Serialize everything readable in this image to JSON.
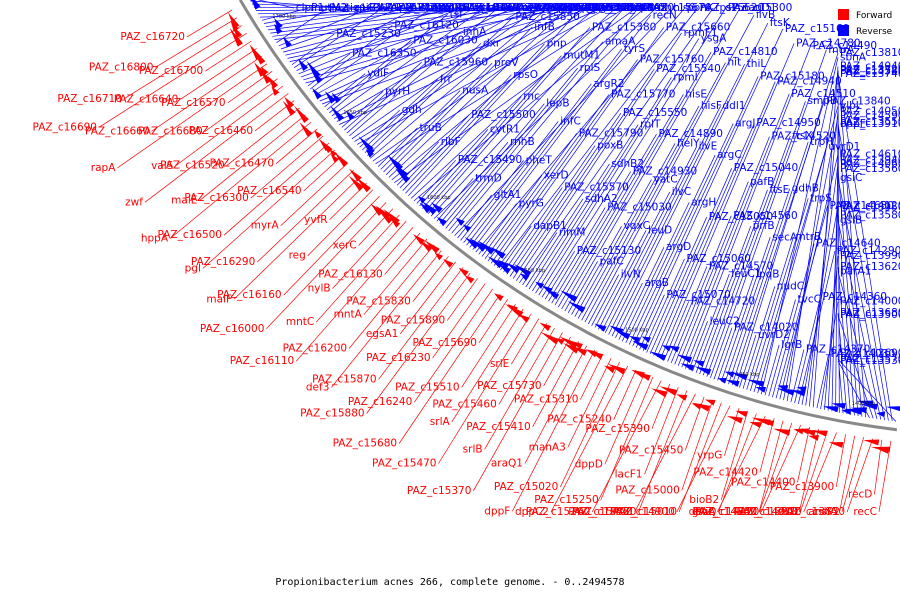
{
  "caption": "Propionibacterium acnes 266, complete genome. - 0..2494578",
  "legend": [
    {
      "label": "Forward",
      "color": "#ff0000"
    },
    {
      "label": "Reverse",
      "color": "#0000ff"
    }
  ],
  "colors": {
    "forward": "#ff0000",
    "reverse": "#0000ff",
    "backbone": "#888888"
  },
  "scale_ticks": [
    "1700 kbp",
    "1650 kbp",
    "1600 kbp",
    "1550 kbp",
    "1500 kbp",
    "1450 kbp",
    "1400 kbp"
  ],
  "forward_labels": [
    "PAZ_c16720",
    "PAZ_c16800",
    "PAZ_c16710",
    "PAZ_c16690",
    "PAZ_c16700",
    "PAZ_c16640",
    "PAZ_c16660",
    "rapA",
    "PAZ_c16570",
    "PAZ_c16680",
    "valS",
    "zwf",
    "PAZ_c16460",
    "PAZ_c16520",
    "malE",
    "hppA",
    "PAZ_c16470",
    "PAZ_c16300",
    "PAZ_c16500",
    "pgl",
    "PAZ_c16540",
    "myrA",
    "PAZ_c16290",
    "malF",
    "yvfR",
    "reg",
    "PAZ_c16160",
    "PAZ_c16000",
    "xerC",
    "nylB",
    "mntC",
    "PAZ_c16110",
    "PAZ_c16130",
    "mntA",
    "PAZ_c16200",
    "def3",
    "PAZ_c15830",
    "egsA1",
    "PAZ_c15870",
    "PAZ_c15880",
    "PAZ_c15890",
    "PAZ_c16230",
    "PAZ_c16240",
    "PAZ_c15680",
    "PAZ_c15690",
    "PAZ_c15510",
    "srlA",
    "PAZ_c15470",
    "srlE",
    "PAZ_c15460",
    "srlB",
    "PAZ_c15370",
    "PAZ_c15730",
    "PAZ_c15410",
    "araQ1",
    "dppF",
    "PAZ_c15310",
    "manA3",
    "PAZ_c15020",
    "dppC2",
    "PAZ_c15240",
    "dppD",
    "PAZ_c15250",
    "PAZ_c15260",
    "PAZ_c15390",
    "lacF1",
    "PAZ_c15350",
    "PAZ_c15400",
    "PAZ_c15450",
    "PAZ_c15000",
    "PAZ_c15010",
    "PAZ_c14900",
    "yrpG",
    "bioB2",
    "gluQ",
    "deoA",
    "PAZ_c14420",
    "PAZ_c14330",
    "PAZ_c14240",
    "PAZ_c14270",
    "PAZ_c14400",
    "leuB",
    "PAZ_c14010",
    "PAZ_c13920",
    "PAZ_c13900",
    "cshA",
    "ansP2",
    "PAZ_c13830",
    "recD",
    "recC"
  ],
  "reverse_labels": [
    "clpP1",
    "tig",
    "clpX",
    "tqsA",
    "tri",
    "PAZ_c16780",
    "lysX",
    "mutM2",
    "rpiB1",
    "PAZ_c16730",
    "clpP2",
    "ctaB",
    "nedA",
    "PAZ_c16380",
    "PAZ_c16360",
    "PAZ_c16370",
    "PAZ_c16170",
    "PAZ_c16150",
    "PAZ_c16180",
    "PAZ_c15220",
    "PAZ_c15200",
    "PAZ_c15230",
    "PAZ_c14740",
    "PAZ_c14650",
    "PAZ_c14690",
    "PAZ_c14700",
    "PAZ_c14710",
    "PAZ_c14130",
    "PAZ_c16350",
    "PAZ_c16120",
    "PAZ_c16310",
    "rpsB",
    "vuyY",
    "PAZ_c16280",
    "PAZ_c16040",
    "ydiF",
    "PAZ_c16030",
    "tsf",
    "fabG",
    "PAZ_c15970",
    "csd2",
    "nifU",
    "pyrH",
    "PAZ_c15960",
    "inhA",
    "cdsA",
    "ylmA",
    "rlmN",
    "PAZ_c15920",
    "gdh",
    "frr",
    "dxr",
    "PAZ_c15850",
    "ispG",
    "PAZ_c15840",
    "rimP",
    "truB",
    "nusA",
    "proV",
    "infB",
    "proW",
    "noDl1",
    "rbfA",
    "ribF",
    "PAZ_c15500",
    "rpsO",
    "pnp",
    "recG",
    "coaD",
    "PAZ_c15670",
    "PAZ_c15490",
    "cytR1",
    "rnc",
    "mutM1",
    "PAZ_c15380",
    "ftsY",
    "ffh",
    "trmD",
    "rnhB",
    "lepB",
    "rplS",
    "amaA",
    "pheS",
    "hisG",
    "gltA1",
    "pheT",
    "infC",
    "argR2",
    "tyrS",
    "recN",
    "ppnK",
    "pyrG",
    "xerD",
    "PAZ_c15790",
    "PAZ_c15770",
    "PAZ_c15760",
    "PAZ_c15660",
    "PAZ_c15620",
    "dapB1",
    "PAZ_c15570",
    "poxB",
    "PAZ_c15550",
    "PAZ_c15540",
    "rpmF1",
    "rpsP",
    "rimM",
    "sdhA2",
    "sdhB2",
    "rplT",
    "rpmI",
    "ysgA",
    "PAZ_c15300",
    "PAZ_c15130",
    "PAZ_c15030",
    "PAZ_c14930",
    "PAZ_c14890",
    "hisE",
    "PAZ_c14810",
    "nagD1",
    "pafC",
    "vqxC",
    "yatC",
    "helY",
    "hisF",
    "hit",
    "ilvB",
    "ilvN",
    "leuD",
    "ilvC",
    "ilvE",
    "ddl1",
    "thiL",
    "ftsK",
    "argB",
    "argD",
    "argH",
    "argC",
    "argJ",
    "PAZ_c15180",
    "PAZ_c15160",
    "PAZ_c15070",
    "PAZ_c15060",
    "PAZ_c15050",
    "PAZ_c15040",
    "PAZ_c14950",
    "PAZ_c14940",
    "PAZ_c14780",
    "PAZ_c14720",
    "PAZ_c14570",
    "PAZ_c14560",
    "pafB",
    "PAZ_c14520",
    "PAZ_c14510",
    "PAZ_c14490",
    "leuC2",
    "leuC1",
    "prfB",
    "ftsE",
    "ftsX",
    "smpB",
    "mtrA",
    "PAZ_c14020",
    "lpqB",
    "secA",
    "gdhB",
    "trpH",
    "PAZ_c13840",
    "PAZ_c13810",
    "uvrD2",
    "nudC",
    "mtrB",
    "trpS",
    "uvrD1",
    "vlbL",
    "sbnA",
    "lgrB",
    "tvcC",
    "PAZ_c14640",
    "PAZ_c14630",
    "PAZ_c14610",
    "PAZ_c14590",
    "PAZ_c14580",
    "PAZ_c14370",
    "PAZ_c14360",
    "PAZ_c14290",
    "PAZ_c14120",
    "PAZ_c14060",
    "PAZ_c14050",
    "PAZ_c14040",
    "PAZ_c14030",
    "PAZ_c14000",
    "PAZ_c13990",
    "PAZ_c13950",
    "PAZ_c13940",
    "PAZ_c13910",
    "PAZ_c13720",
    "PAZ_c13690",
    "PAZ_c13680",
    "PAZ_c13620",
    "PAZ_c13580",
    "PAZ_c13560",
    "PAZ_c13550",
    "PAZ_c13540",
    "PAZ_c13530",
    "PAZ_c13500",
    "parA1",
    "gsiB",
    "gsiC",
    "oppF",
    "PAZ_c13740",
    "PAZ_c13570"
  ]
}
